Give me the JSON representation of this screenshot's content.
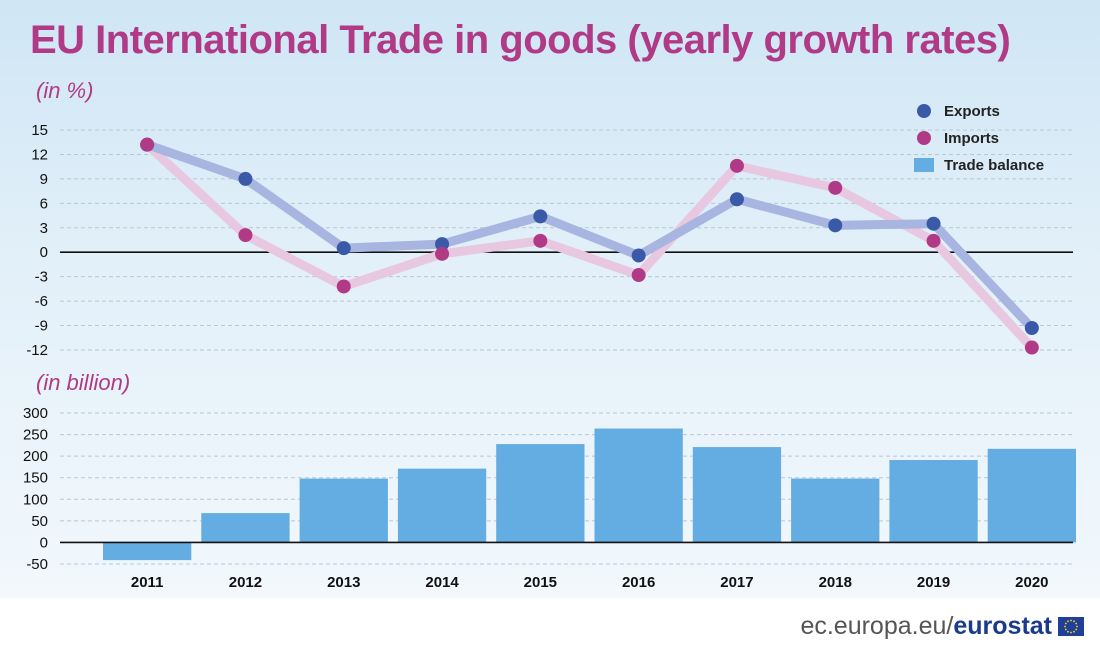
{
  "title": "EU International Trade in goods (yearly growth rates)",
  "unit_top": "(in %)",
  "unit_bottom": "(in billion)",
  "footer": {
    "site": "ec.europa.eu/",
    "brand": "eurostat"
  },
  "colors": {
    "exports": "#3a5aa8",
    "exports_line": "#a7b5e0",
    "imports": "#b03a86",
    "imports_line": "#e8c8e0",
    "trade_balance": "#63ade2",
    "title": "#b03a86"
  },
  "chart_data": [
    {
      "type": "line",
      "title": "EU International Trade in goods (yearly growth rates)",
      "ylabel": "(in %)",
      "ylim": [
        -12,
        15
      ],
      "yticks": [
        15,
        12,
        9,
        6,
        3,
        0,
        -3,
        -6,
        -9,
        -12
      ],
      "categories": [
        "2011",
        "2012",
        "2013",
        "2014",
        "2015",
        "2016",
        "2017",
        "2018",
        "2019",
        "2020"
      ],
      "series": [
        {
          "name": "Exports",
          "values": [
            13.2,
            9.0,
            0.5,
            1.0,
            4.4,
            -0.4,
            6.5,
            3.3,
            3.5,
            -9.3
          ]
        },
        {
          "name": "Imports",
          "values": [
            13.2,
            2.1,
            -4.2,
            -0.2,
            1.4,
            -2.8,
            10.6,
            7.9,
            1.4,
            -11.7
          ]
        }
      ],
      "legend": [
        "Exports",
        "Imports",
        "Trade balance"
      ]
    },
    {
      "type": "bar",
      "ylabel": "(in billion)",
      "ylim": [
        -50,
        300
      ],
      "yticks": [
        300,
        250,
        200,
        150,
        100,
        50,
        0,
        -50
      ],
      "categories": [
        "2011",
        "2012",
        "2013",
        "2014",
        "2015",
        "2016",
        "2017",
        "2018",
        "2019",
        "2020"
      ],
      "series": [
        {
          "name": "Trade balance",
          "values": [
            -41,
            68,
            148,
            171,
            228,
            264,
            221,
            148,
            191,
            217
          ]
        }
      ]
    }
  ]
}
